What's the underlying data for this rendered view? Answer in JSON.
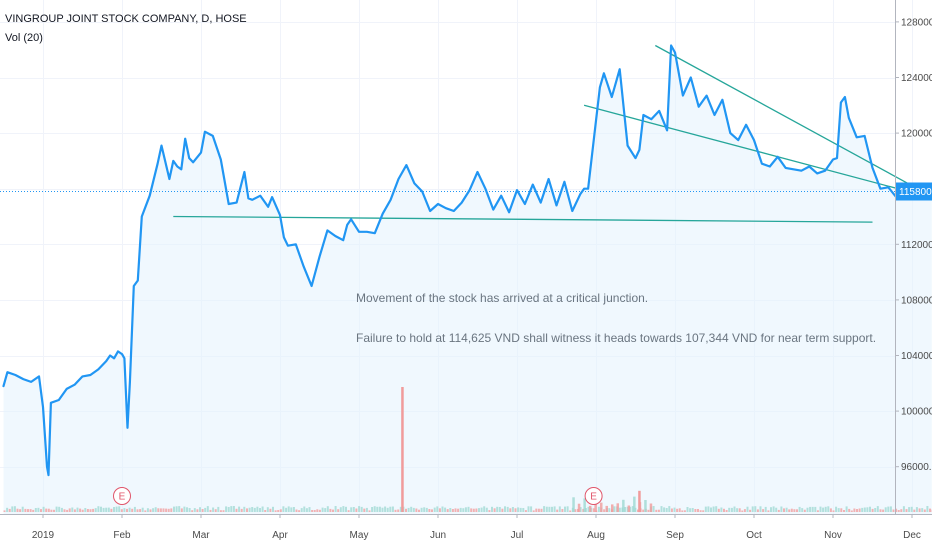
{
  "header": {
    "title": "VINGROUP JOINT STOCK COMPANY, D, HOSE",
    "volume_label": "Vol (20)"
  },
  "annotation": {
    "line1": "Movement of the stock has arrived at a critical junction.",
    "line2": "Failure to hold at 114,625 VND shall witness it heads towards 107,344 VND for near term support."
  },
  "colors": {
    "price_line": "#2196f3",
    "area_fill": "#e3f2fd",
    "trendline": "#26a69a",
    "last_price_bg": "#2196f3",
    "volume_up": "#9ed8d2",
    "volume_down": "#f19b9b",
    "earnings_marker": "#e0556a"
  },
  "chart_data": {
    "type": "line",
    "symbol": "VINGROUP JOINT STOCK COMPANY",
    "interval": "D",
    "exchange": "HOSE",
    "x_unit": "month_index",
    "x_range": [
      -0.5,
      12.0
    ],
    "ylim": [
      92000,
      130000
    ],
    "grid": true,
    "price_ticks": [
      96000,
      100000,
      104000,
      108000,
      112000,
      116000,
      120000,
      124000,
      128000
    ],
    "price_tick_labels": [
      "96000.0",
      "100000.0",
      "104000.0",
      "108000.0",
      "112000.0",
      "",
      "120000.0",
      "124000.0",
      "128000.0"
    ],
    "last_price": 115800,
    "last_price_label": "115800.0",
    "month_ticks": [
      {
        "label": "2019",
        "x": 0.0
      },
      {
        "label": "Feb",
        "x": 1.0
      },
      {
        "label": "Mar",
        "x": 2.0
      },
      {
        "label": "Apr",
        "x": 3.0
      },
      {
        "label": "May",
        "x": 4.0
      },
      {
        "label": "Jun",
        "x": 5.0
      },
      {
        "label": "Jul",
        "x": 6.0
      },
      {
        "label": "Aug",
        "x": 7.0
      },
      {
        "label": "Sep",
        "x": 8.0
      },
      {
        "label": "Oct",
        "x": 9.0
      },
      {
        "label": "Nov",
        "x": 10.0
      },
      {
        "label": "Dec",
        "x": 11.0
      }
    ],
    "series": [
      {
        "x": [
          -0.5,
          -0.45,
          -0.35,
          -0.25,
          -0.15,
          -0.05,
          0.0,
          0.05,
          0.07,
          0.1,
          0.2,
          0.3,
          0.4,
          0.5,
          0.6,
          0.7,
          0.8,
          0.85,
          0.9,
          0.95,
          1.0,
          1.03,
          1.07,
          1.1,
          1.15,
          1.2,
          1.25,
          1.35,
          1.45,
          1.5,
          1.6,
          1.65,
          1.7,
          1.75,
          1.8,
          1.85,
          1.9,
          2.0,
          2.05,
          2.15,
          2.25,
          2.35,
          2.45,
          2.55,
          2.6,
          2.65,
          2.75,
          2.85,
          2.9,
          3.0,
          3.05,
          3.1,
          3.2,
          3.3,
          3.4,
          3.5,
          3.6,
          3.7,
          3.8,
          3.85,
          3.9,
          4.0,
          4.1,
          4.2,
          4.3,
          4.4,
          4.5,
          4.6,
          4.7,
          4.8,
          4.9,
          5.0,
          5.1,
          5.2,
          5.3,
          5.4,
          5.5,
          5.6,
          5.7,
          5.8,
          5.9,
          6.0,
          6.1,
          6.2,
          6.3,
          6.4,
          6.5,
          6.6,
          6.7,
          6.8,
          6.85,
          6.9,
          7.0,
          7.05,
          7.1,
          7.2,
          7.3,
          7.4,
          7.5,
          7.55,
          7.6,
          7.7,
          7.8,
          7.9,
          7.95,
          8.0,
          8.1,
          8.2,
          8.3,
          8.4,
          8.5,
          8.6,
          8.7,
          8.8,
          8.9,
          9.0,
          9.1,
          9.2,
          9.3,
          9.4,
          9.5,
          9.6,
          9.7,
          9.8,
          9.9,
          10.0,
          10.05,
          10.1,
          10.15,
          10.2,
          10.3,
          10.4,
          10.5,
          10.6,
          10.7,
          10.8,
          10.9,
          11.0,
          11.1,
          11.2,
          11.25
        ],
        "values": [
          101800,
          102800,
          102600,
          102300,
          102100,
          102500,
          100300,
          96000,
          95400,
          100600,
          100800,
          101600,
          101900,
          102500,
          102600,
          103000,
          103600,
          104000,
          103800,
          104300,
          104100,
          103800,
          98800,
          102100,
          109000,
          109400,
          114000,
          115500,
          117800,
          119100,
          116700,
          118000,
          117600,
          117400,
          119600,
          118200,
          117900,
          118600,
          120100,
          119800,
          118100,
          114900,
          115000,
          117200,
          115300,
          115200,
          115500,
          114700,
          115400,
          114100,
          112500,
          111900,
          112000,
          110400,
          109000,
          111100,
          113000,
          112600,
          112300,
          113400,
          113800,
          112900,
          112900,
          112800,
          114200,
          115200,
          116700,
          117700,
          116400,
          115800,
          114400,
          114900,
          114600,
          114400,
          115000,
          115900,
          117200,
          116000,
          114500,
          115500,
          114300,
          115900,
          114900,
          116300,
          115000,
          116700,
          114800,
          116500,
          114400,
          115600,
          116000,
          116000,
          120900,
          123300,
          124300,
          122600,
          124600,
          119100,
          118200,
          118800,
          121300,
          121000,
          121600,
          120200,
          126300,
          125800,
          122700,
          124000,
          121900,
          122700,
          121300,
          122400,
          120000,
          119500,
          120600,
          119500,
          117800,
          117600,
          118300,
          117500,
          117400,
          117300,
          117600,
          117100,
          117300,
          118100,
          118200,
          122200,
          122600,
          121100,
          119700,
          119800,
          117500,
          116000,
          116100,
          115400,
          115600,
          115400,
          115700,
          115800,
          115800
        ],
        "color": "#2196f3"
      }
    ],
    "trendlines": [
      {
        "x1": 1.65,
        "y1": 114000,
        "x2": 10.5,
        "y2": 113600
      },
      {
        "x1": 7.75,
        "y1": 126300,
        "x2": 11.65,
        "y2": 114200
      },
      {
        "x1": 6.85,
        "y1": 122000,
        "x2": 11.35,
        "y2": 115200
      }
    ],
    "volume": {
      "label": "Vol (20)",
      "spike_values": [
        {
          "x": 4.55,
          "value": 1.0,
          "color": "#f19b9b"
        },
        {
          "x": 7.55,
          "value": 0.17,
          "color": "#f19b9b"
        }
      ],
      "baseline_level": 0.03
    },
    "earnings_markers": [
      {
        "x": 1.0,
        "label": "E"
      },
      {
        "x": 6.97,
        "label": "E"
      }
    ]
  }
}
